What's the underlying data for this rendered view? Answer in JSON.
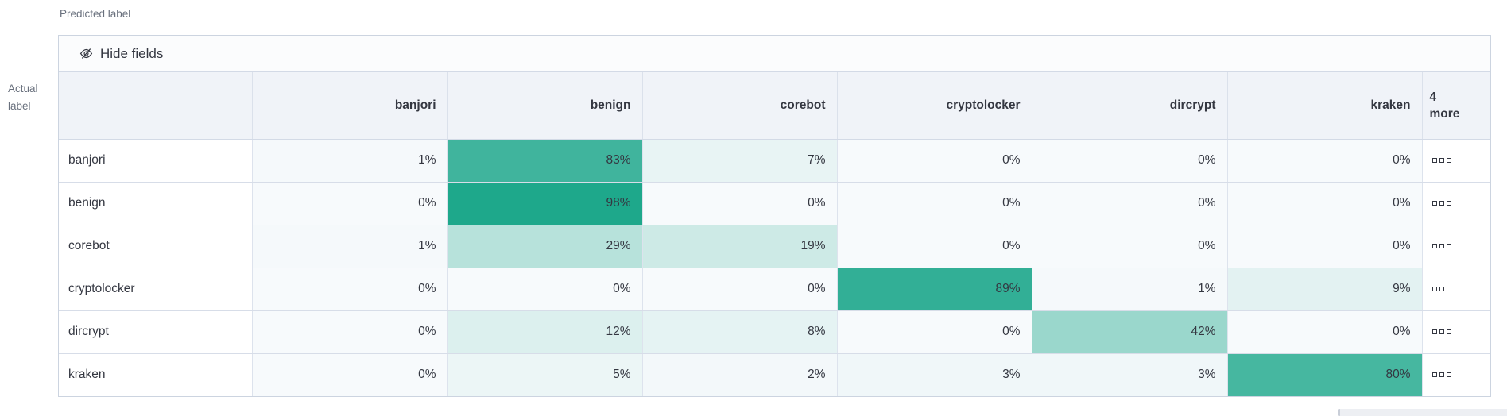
{
  "axes": {
    "predicted": "Predicted label",
    "actual_line1": "Actual",
    "actual_line2": "label"
  },
  "toolbar": {
    "hide_fields_label": "Hide fields",
    "hide_fields_icon": "eye-closed-icon"
  },
  "colors": {
    "heat_teal": "#1aa689",
    "cell_base": "#f7fafc",
    "header_bg": "#f0f3f8",
    "border": "#d3dae6",
    "text_dark": "#343741",
    "text_muted": "#69707d"
  },
  "chart_data": {
    "type": "heatmap",
    "x_axis_label": "Predicted label",
    "y_axis_label": "Actual label",
    "columns": [
      "banjori",
      "benign",
      "corebot",
      "cryptolocker",
      "dircrypt",
      "kraken"
    ],
    "overflow_column": {
      "line1": "4",
      "line2": "more",
      "row_icon": "boxes-horizontal-icon"
    },
    "value_suffix": "%",
    "rows": [
      {
        "label": "banjori",
        "values": [
          1,
          83,
          7,
          0,
          0,
          0
        ]
      },
      {
        "label": "benign",
        "values": [
          0,
          98,
          0,
          0,
          0,
          0
        ]
      },
      {
        "label": "corebot",
        "values": [
          1,
          29,
          19,
          0,
          0,
          0
        ]
      },
      {
        "label": "cryptolocker",
        "values": [
          0,
          0,
          0,
          89,
          1,
          9
        ]
      },
      {
        "label": "dircrypt",
        "values": [
          0,
          12,
          8,
          0,
          42,
          0
        ]
      },
      {
        "label": "kraken",
        "values": [
          0,
          5,
          2,
          3,
          3,
          80
        ]
      }
    ]
  }
}
